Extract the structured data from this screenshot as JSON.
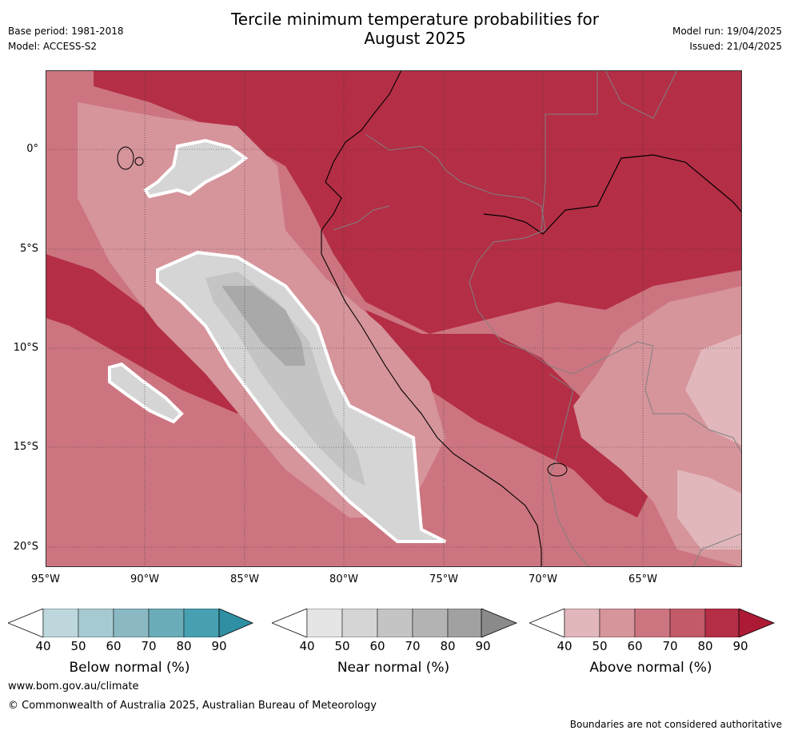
{
  "title": "Tercile minimum temperature probabilities for August 2025",
  "title_line1": "Tercile minimum temperature probabilities for",
  "title_line2": "August 2025",
  "base_period": "Base period: 1981-2018",
  "model": "Model: ACCESS-S2",
  "model_run": "Model run: 19/04/2025",
  "issued": "Issued: 21/04/2025",
  "lat_ticks": [
    "0°",
    "5°S",
    "10°S",
    "15°S",
    "20°S"
  ],
  "lon_ticks": [
    "95°W",
    "90°W",
    "85°W",
    "80°W",
    "75°W",
    "70°W",
    "65°W"
  ],
  "colorbars": [
    {
      "label": "Below normal (%)",
      "ticks": [
        "40",
        "50",
        "60",
        "70",
        "80",
        "90"
      ],
      "colors": [
        "#ffffff",
        "#bdd7dd",
        "#a6cad1",
        "#8ab9c3",
        "#6aacb7",
        "#47a0b1",
        "#2f8fa3"
      ]
    },
    {
      "label": "Near normal (%)",
      "ticks": [
        "40",
        "50",
        "60",
        "70",
        "80",
        "90"
      ],
      "colors": [
        "#ffffff",
        "#e5e5e5",
        "#d5d5d5",
        "#c4c4c4",
        "#b3b3b3",
        "#a1a1a1",
        "#8a8a8a"
      ]
    },
    {
      "label": "Above normal (%)",
      "ticks": [
        "40",
        "50",
        "60",
        "70",
        "80",
        "90"
      ],
      "colors": [
        "#ffffff",
        "#e1b7bb",
        "#d6949b",
        "#cc7580",
        "#c25a69",
        "#b42e46",
        "#ac1a36"
      ]
    }
  ],
  "map_colors": {
    "above_40": "#e1b7bb",
    "above_50": "#d6949b",
    "above_60": "#cc7580",
    "above_70": "#c25a69",
    "above_80": "#b42e46",
    "near_50": "#d5d5d5",
    "near_60": "#c4c4c4",
    "near_70": "#a9a9a9"
  },
  "footer_url": "www.bom.gov.au/climate",
  "footer_copyright": "© Commonwealth of Australia 2025, Australian Bureau of Meteorology",
  "disclaimer": "Boundaries are not considered authoritative"
}
